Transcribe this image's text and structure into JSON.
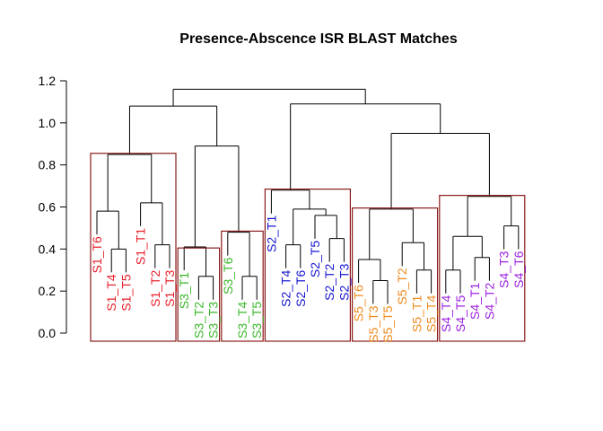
{
  "title": "Presence-Abscence  ISR BLAST Matches",
  "colors": {
    "S1": "#e8202a",
    "S2": "#1515d0",
    "S3": "#3ab829",
    "S4": "#9b1fe0",
    "S5": "#f08a1c",
    "cluster_box": "#8b1a1a"
  },
  "chart_data": {
    "type": "dendrogram",
    "title": "Presence-Abscence  ISR BLAST Matches",
    "ylabel": "",
    "xlabel": "",
    "ylim": [
      0,
      1.2
    ],
    "yticks": [
      "0.0",
      "0.2",
      "0.4",
      "0.6",
      "0.8",
      "1.0",
      "1.2"
    ],
    "leaves": [
      "S1_T6",
      "S1_T4",
      "S1_T5",
      "S1_T1",
      "S1_T2",
      "S1_T3",
      "S3_T1",
      "S3_T2",
      "S3_T3",
      "S3_T6",
      "S3_T4",
      "S3_T5",
      "S2_T1",
      "S2_T4",
      "S2_T6",
      "S2_T5",
      "S2_T2",
      "S2_T3",
      "S5_T6",
      "S5_T3",
      "S5_T5",
      "S5_T2",
      "S5_T1",
      "S5_T4",
      "S4_T4",
      "S4_T5",
      "S4_T1",
      "S4_T2",
      "S4_T3",
      "S4_T6"
    ],
    "leaf_groups": [
      "S1",
      "S1",
      "S1",
      "S1",
      "S1",
      "S1",
      "S3",
      "S3",
      "S3",
      "S3",
      "S3",
      "S3",
      "S2",
      "S2",
      "S2",
      "S2",
      "S2",
      "S2",
      "S5",
      "S5",
      "S5",
      "S5",
      "S5",
      "S5",
      "S4",
      "S4",
      "S4",
      "S4",
      "S4",
      "S4"
    ],
    "merges": [
      {
        "left": "S1_T4",
        "right": "S1_T5",
        "height": 0.4
      },
      {
        "left": "S1_T6",
        "right": 0,
        "height": 0.58
      },
      {
        "left": "S1_T2",
        "right": "S1_T3",
        "height": 0.42
      },
      {
        "left": "S1_T1",
        "right": 2,
        "height": 0.62
      },
      {
        "left": 1,
        "right": 3,
        "height": 0.85
      },
      {
        "left": "S3_T2",
        "right": "S3_T3",
        "height": 0.27
      },
      {
        "left": "S3_T1",
        "right": 5,
        "height": 0.41
      },
      {
        "left": "S3_T4",
        "right": "S3_T5",
        "height": 0.27
      },
      {
        "left": "S3_T6",
        "right": 7,
        "height": 0.48
      },
      {
        "left": 6,
        "right": 8,
        "height": 0.89
      },
      {
        "left": 4,
        "right": 9,
        "height": 1.08
      },
      {
        "left": "S2_T4",
        "right": "S2_T6",
        "height": 0.42
      },
      {
        "left": "S2_T2",
        "right": "S2_T3",
        "height": 0.45
      },
      {
        "left": "S2_T5",
        "right": 12,
        "height": 0.56
      },
      {
        "left": 11,
        "right": 13,
        "height": 0.59
      },
      {
        "left": "S2_T1",
        "right": 14,
        "height": 0.68
      },
      {
        "left": "S5_T3",
        "right": "S5_T5",
        "height": 0.25
      },
      {
        "left": "S5_T6",
        "right": 16,
        "height": 0.35
      },
      {
        "left": "S5_T1",
        "right": "S5_T4",
        "height": 0.3
      },
      {
        "left": "S5_T2",
        "right": 18,
        "height": 0.43
      },
      {
        "left": 17,
        "right": 19,
        "height": 0.59
      },
      {
        "left": "S4_T4",
        "right": "S4_T5",
        "height": 0.3
      },
      {
        "left": "S4_T1",
        "right": "S4_T2",
        "height": 0.36
      },
      {
        "left": 21,
        "right": 22,
        "height": 0.46
      },
      {
        "left": "S4_T3",
        "right": "S4_T6",
        "height": 0.51
      },
      {
        "left": 23,
        "right": 24,
        "height": 0.65
      },
      {
        "left": 20,
        "right": 25,
        "height": 0.95
      },
      {
        "left": 15,
        "right": 26,
        "height": 1.09
      },
      {
        "left": 10,
        "right": 27,
        "height": 1.16
      }
    ],
    "clusters": [
      {
        "members": [
          "S1_T6",
          "S1_T4",
          "S1_T5",
          "S1_T1",
          "S1_T2",
          "S1_T3"
        ],
        "top": 0.855
      },
      {
        "members": [
          "S3_T1",
          "S3_T2",
          "S3_T3"
        ],
        "top": 0.405
      },
      {
        "members": [
          "S3_T6",
          "S3_T4",
          "S3_T5"
        ],
        "top": 0.485
      },
      {
        "members": [
          "S2_T1",
          "S2_T4",
          "S2_T6",
          "S2_T5",
          "S2_T2",
          "S2_T3"
        ],
        "top": 0.685
      },
      {
        "members": [
          "S5_T6",
          "S5_T3",
          "S5_T5",
          "S5_T2",
          "S5_T1",
          "S5_T4"
        ],
        "top": 0.595
      },
      {
        "members": [
          "S4_T4",
          "S4_T5",
          "S4_T1",
          "S4_T2",
          "S4_T3",
          "S4_T6"
        ],
        "top": 0.655
      }
    ],
    "grid": false,
    "legend": "none"
  }
}
